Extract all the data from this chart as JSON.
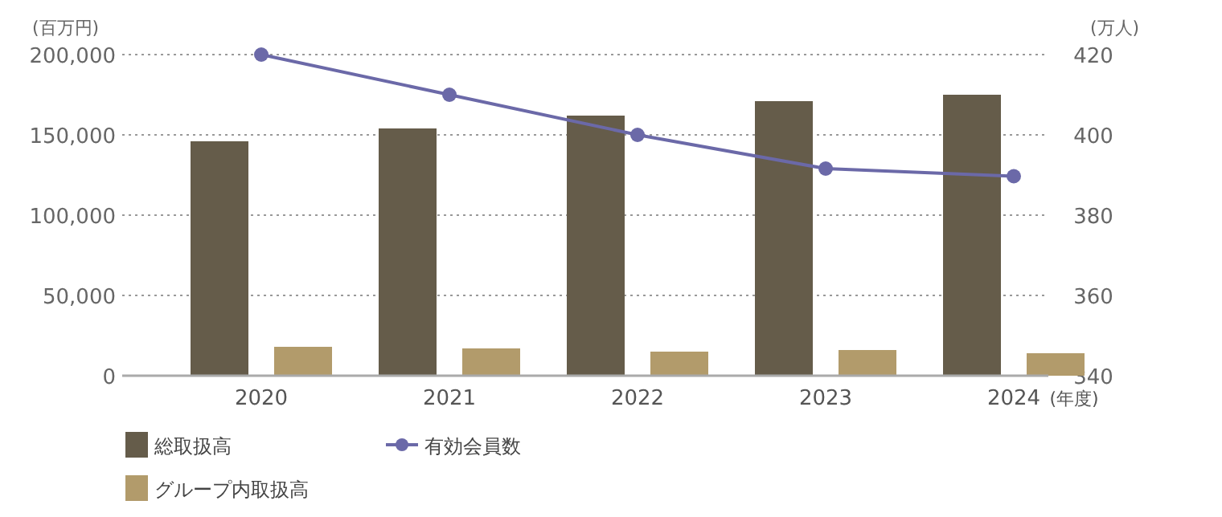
{
  "chart_data": {
    "type": "bar",
    "categories": [
      "2020",
      "2021",
      "2022",
      "2023",
      "2024"
    ],
    "xlabel": "(年度)",
    "ylabel": "(百万円)",
    "y2label": "(万人)",
    "series": [
      {
        "name": "総取扱高",
        "color": "#655c4a",
        "values": [
          146000,
          154000,
          162000,
          171000,
          175000
        ]
      },
      {
        "name": "グループ内取扱高",
        "color": "#b29b6b",
        "values": [
          18000,
          17000,
          15000,
          16000,
          14000
        ]
      },
      {
        "name": "有効会員数",
        "type": "line",
        "axis": "y2",
        "color": "#6b69a8",
        "marker": "circle",
        "values": [
          420,
          410,
          400,
          391.6,
          389.7
        ]
      }
    ],
    "ylim": [
      0,
      200000
    ],
    "yticks": [
      {
        "value": 0,
        "label": "0"
      },
      {
        "value": 50000,
        "label": "50,000"
      },
      {
        "value": 100000,
        "label": "100,000"
      },
      {
        "value": 150000,
        "label": "150,000"
      },
      {
        "value": 200000,
        "label": "200,000"
      }
    ],
    "y2lim": [
      340,
      420
    ],
    "y2ticks": [
      340,
      360,
      380,
      400,
      420
    ],
    "grid": "y",
    "legend": "bottom"
  }
}
